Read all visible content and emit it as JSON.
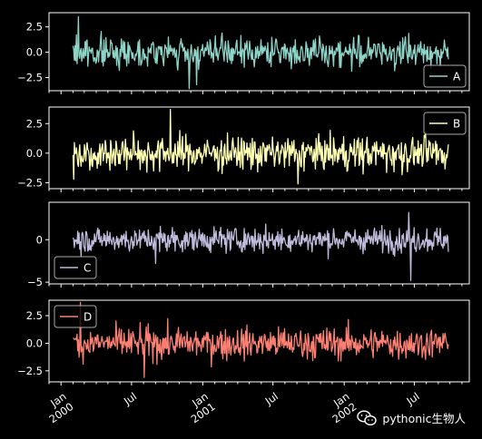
{
  "watermark": {
    "text": "pythonic生物人",
    "icon": "wechat-icon"
  },
  "chart_data": {
    "type": "line",
    "shared_x": true,
    "x_start": "2000-02-01",
    "x_end": "2002-09-27",
    "xlim": [
      "1999-12-01",
      "2002-11-20"
    ],
    "x_ticks": [
      {
        "date": "2000-01-01",
        "label": "Jan\n2000"
      },
      {
        "date": "2000-07-01",
        "label": "Jul"
      },
      {
        "date": "2001-01-01",
        "label": "Jan\n2001"
      },
      {
        "date": "2001-07-01",
        "label": "Jul"
      },
      {
        "date": "2002-01-01",
        "label": "Jan\n2002"
      },
      {
        "date": "2002-07-01",
        "label": "Jul"
      }
    ],
    "title": "",
    "panels": [
      {
        "name": "A",
        "color": "#8dd3c7",
        "legend_position": "lower-right",
        "ylim": [
          -3.8,
          3.9
        ],
        "y_ticks": [
          -2.5,
          0.0,
          2.5
        ],
        "y_tick_labels": [
          "−2.5",
          "0.0",
          "2.5"
        ],
        "amplitude": 1.0,
        "drift": [
          [
            0,
            0.0
          ],
          [
            1,
            0.0
          ]
        ],
        "spikes": [
          {
            "t": 0.015,
            "v": 3.5
          },
          {
            "t": 0.33,
            "v": -3.2
          },
          {
            "t": 0.31,
            "v": -3.6
          }
        ]
      },
      {
        "name": "B",
        "color": "#ffffb3",
        "legend_position": "upper-right",
        "ylim": [
          -3.0,
          3.9
        ],
        "y_ticks": [
          -2.5,
          0.0,
          2.5
        ],
        "y_tick_labels": [
          "−2.5",
          "0.0",
          "2.5"
        ],
        "amplitude": 1.0,
        "drift": [
          [
            0,
            0.0
          ],
          [
            1,
            0.0
          ]
        ],
        "spikes": [
          {
            "t": 0.26,
            "v": 3.7
          },
          {
            "t": 0.002,
            "v": -2.2
          },
          {
            "t": 0.6,
            "v": -2.6
          }
        ]
      },
      {
        "name": "C",
        "color": "#bebada",
        "legend_position": "lower-left",
        "ylim": [
          -5.2,
          4.4
        ],
        "y_ticks": [
          -5,
          0
        ],
        "y_tick_labels": [
          "−5",
          "0"
        ],
        "amplitude": 1.0,
        "drift": [
          [
            0,
            0.0
          ],
          [
            1,
            0.0
          ]
        ],
        "spikes": [
          {
            "t": 0.895,
            "v": 3.2
          },
          {
            "t": 0.9,
            "v": -4.8
          },
          {
            "t": 0.22,
            "v": -2.8
          }
        ]
      },
      {
        "name": "D",
        "color": "#fb8072",
        "legend_position": "upper-left",
        "ylim": [
          -3.5,
          3.9
        ],
        "y_ticks": [
          -2.5,
          0.0,
          2.5
        ],
        "y_tick_labels": [
          "−2.5",
          "0.0",
          "2.5"
        ],
        "amplitude": 1.0,
        "drift": [
          [
            0,
            0.0
          ],
          [
            1,
            0.0
          ]
        ],
        "spikes": [
          {
            "t": 0.02,
            "v": 3.7
          },
          {
            "t": 0.19,
            "v": -3.1
          }
        ]
      }
    ]
  }
}
